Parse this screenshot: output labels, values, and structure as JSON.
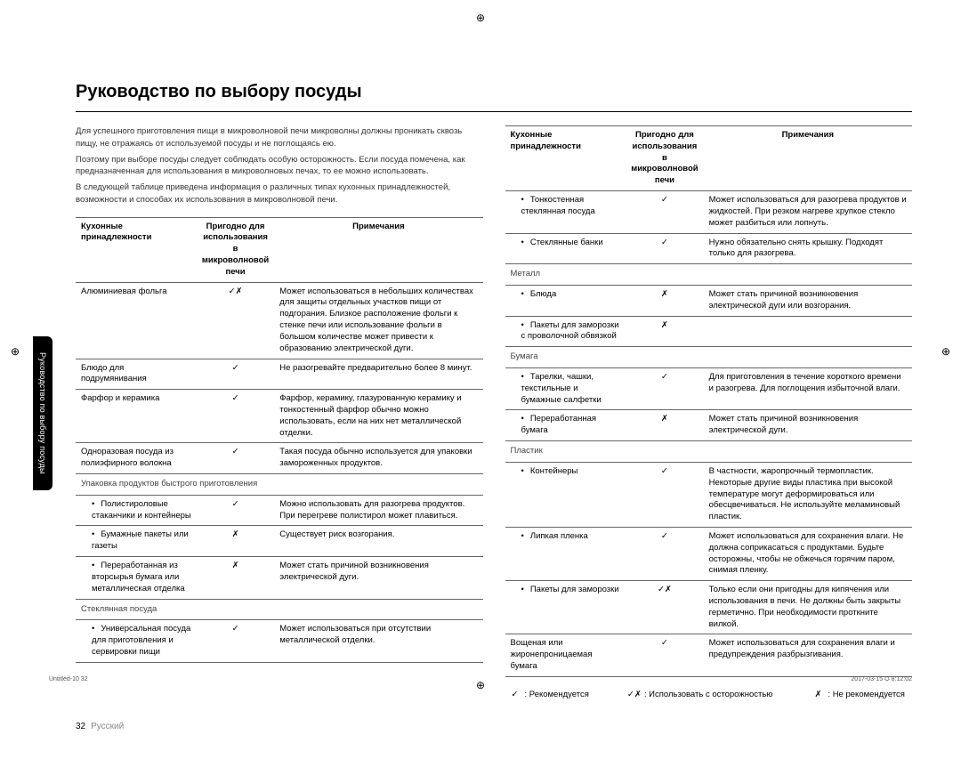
{
  "title": "Руководство по выбору посуды",
  "sideTab": "Руководство по выбору посуды",
  "intro": [
    "Для успешного приготовления пищи в микроволновой печи микроволны должны проникать сквозь пищу, не отражаясь от используемой посуды и не поглощаясь ею.",
    "Поэтому при выборе посуды следует соблюдать особую осторожность. Если посуда помечена, как предназначенная для использования в микроволновых печах, то ее можно использовать.",
    "В следующей таблице приведена информация о различных типах кухонных принадлежностей, возможности и способах их использования в микроволновой печи."
  ],
  "headers": {
    "c1": "Кухонные принадлежности",
    "c2": "Пригодно для использования в микроволновой печи",
    "c3": "Примечания"
  },
  "leftRows": [
    {
      "name": "Алюминиевая фольга",
      "safe": "✓✗",
      "note": "Может использоваться в небольших количествах для защиты отдельных участков пищи от подгорания. Близкое расположение фольги к стенке печи или использование фольги в большом количестве может привести к образованию электрической дуги."
    },
    {
      "name": "Блюдо для подрумянивания",
      "safe": "✓",
      "note": "Не разогревайте предварительно более 8 минут."
    },
    {
      "name": "Фарфор и керамика",
      "safe": "✓",
      "note": "Фарфор, керамику, глазурованную керамику и тонкостенный фарфор обычно можно использовать, если на них нет металлической отделки."
    },
    {
      "name": "Одноразовая посуда из полиэфирного волокна",
      "safe": "✓",
      "note": "Такая посуда обычно используется для упаковки замороженных продуктов."
    },
    {
      "section": "Упаковка продуктов быстрого приготовления"
    },
    {
      "name": "Полистироловые стаканчики и контейнеры",
      "safe": "✓",
      "note": "Можно использовать для разогрева продуктов. При перегреве полистирол может плавиться.",
      "bullet": true
    },
    {
      "name": "Бумажные пакеты или газеты",
      "safe": "✗",
      "note": "Существует риск возгорания.",
      "bullet": true
    },
    {
      "name": "Переработанная из вторсырья бумага или металлическая отделка",
      "safe": "✗",
      "note": "Может стать причиной возникновения электрической дуги.",
      "bullet": true
    },
    {
      "section": "Стеклянная посуда"
    },
    {
      "name": "Универсальная посуда для приготовления и сервировки пищи",
      "safe": "✓",
      "note": "Может использоваться при отсутствии металлической отделки.",
      "bullet": true
    }
  ],
  "rightRows": [
    {
      "name": "Тонкостенная стеклянная посуда",
      "safe": "✓",
      "note": "Может использоваться для разогрева продуктов и жидкостей. При резком нагреве хрупкое стекло может разбиться или лопнуть.",
      "bullet": true
    },
    {
      "name": "Стеклянные банки",
      "safe": "✓",
      "note": "Нужно обязательно снять крышку. Подходят только для разогрева.",
      "bullet": true
    },
    {
      "section": "Металл"
    },
    {
      "name": "Блюда",
      "safe": "✗",
      "note": "Может стать причиной возникновения электрической дуги или возгорания.",
      "bullet": true
    },
    {
      "name": "Пакеты для заморозки с проволочной обвязкой",
      "safe": "✗",
      "note": "",
      "bullet": true
    },
    {
      "section": "Бумага"
    },
    {
      "name": "Тарелки, чашки, текстильные и бумажные салфетки",
      "safe": "✓",
      "note": "Для приготовления в течение короткого времени и разогрева. Для поглощения избыточной влаги.",
      "bullet": true
    },
    {
      "name": "Переработанная бумага",
      "safe": "✗",
      "note": "Может стать причиной возникновения электрической дуги.",
      "bullet": true
    },
    {
      "section": "Пластик"
    },
    {
      "name": "Контейнеры",
      "safe": "✓",
      "note": "В частности, жаропрочный термопластик. Некоторые другие виды пластика при высокой температуре могут деформироваться или обесцвечиваться. Не используйте меламиновый пластик.",
      "bullet": true
    },
    {
      "name": "Липкая пленка",
      "safe": "✓",
      "note": "Может использоваться для сохранения влаги. Не должна соприкасаться с продуктами. Будьте осторожны, чтобы не обжечься горячим паром, снимая пленку.",
      "bullet": true
    },
    {
      "name": "Пакеты для заморозки",
      "safe": "✓✗",
      "note": "Только если они пригодны для кипячения или использования в печи. Не должны быть закрыты герметично. При необходимости проткните вилкой.",
      "bullet": true
    },
    {
      "name": "Вощеная или жиронепроницаемая бумага",
      "safe": "✓",
      "note": "Может использоваться для сохранения влаги и предупреждения разбрызгивания."
    }
  ],
  "legend": [
    {
      "sym": "✓",
      "txt": ": Рекомендуется"
    },
    {
      "sym": "✓✗",
      "txt": ": Использовать с осторожностью"
    },
    {
      "sym": "✗",
      "txt": ": Не рекомендуется"
    }
  ],
  "pageNumber": "32",
  "language": "Русский",
  "footerLeft": "Untitled-10   32",
  "footerRight": "2017-03-15   ⛭ 8:12:02",
  "cropMark": "⊕"
}
